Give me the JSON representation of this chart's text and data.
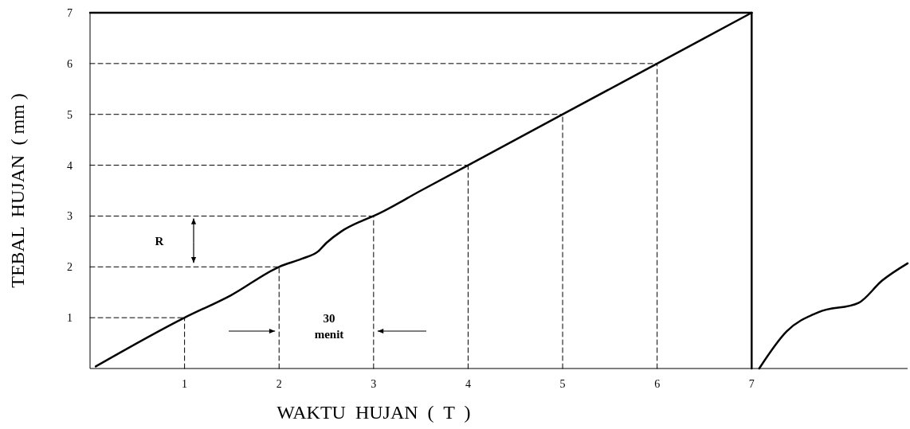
{
  "chart_data": {
    "type": "line",
    "xlabel": "WAKTU  HUJAN  (  T  )",
    "ylabel": "TEBAL  HUJAN  ( mm )",
    "xlim": [
      0,
      8.65
    ],
    "ylim": [
      0,
      7
    ],
    "xticks": [
      1,
      2,
      3,
      4,
      5,
      6,
      7
    ],
    "yticks": [
      1,
      2,
      3,
      4,
      5,
      6,
      7
    ],
    "grid": false,
    "marker": "none",
    "line_style": "solid",
    "series": [
      {
        "color": "#000000",
        "x": [
          0.06,
          1,
          1.49,
          2,
          2.24,
          2.41,
          2.5,
          2.66,
          2.87,
          3,
          3.5,
          4,
          5,
          6,
          7
        ],
        "values": [
          0.04,
          1,
          1.44,
          2,
          2.16,
          2.3,
          2.47,
          2.7,
          2.9,
          3,
          3.5,
          4,
          5,
          6,
          7
        ]
      },
      {
        "color": "#000000",
        "x": [
          7.08,
          7.37,
          7.71,
          8.13,
          8.38,
          8.65
        ],
        "values": [
          0,
          0.73,
          1.11,
          1.29,
          1.73,
          2.07
        ]
      },
      {
        "color": "#000000",
        "x": [
          0,
          7
        ],
        "values": [
          7,
          7
        ]
      },
      {
        "color": "#000000",
        "x": [
          7,
          7
        ],
        "values": [
          0,
          7
        ]
      },
      {
        "color": "#000000",
        "line_style": "dashed",
        "x": [
          0,
          1
        ],
        "values": [
          1,
          1
        ]
      },
      {
        "color": "#000000",
        "line_style": "dashed",
        "x": [
          1,
          1
        ],
        "values": [
          0,
          1
        ]
      },
      {
        "color": "#000000",
        "line_style": "dashed",
        "x": [
          0,
          2
        ],
        "values": [
          2,
          2
        ]
      },
      {
        "color": "#000000",
        "line_style": "dashed",
        "x": [
          2,
          2
        ],
        "values": [
          0,
          2
        ]
      },
      {
        "color": "#000000",
        "line_style": "dashed",
        "x": [
          0,
          3
        ],
        "values": [
          3,
          3
        ]
      },
      {
        "color": "#000000",
        "line_style": "dashed",
        "x": [
          3,
          3
        ],
        "values": [
          0,
          3
        ]
      },
      {
        "color": "#000000",
        "line_style": "dashed",
        "x": [
          0,
          4
        ],
        "values": [
          4,
          4
        ]
      },
      {
        "color": "#000000",
        "line_style": "dashed",
        "x": [
          4,
          4
        ],
        "values": [
          0,
          4
        ]
      },
      {
        "color": "#000000",
        "line_style": "dashed",
        "x": [
          0,
          5
        ],
        "values": [
          5,
          5
        ]
      },
      {
        "color": "#000000",
        "line_style": "dashed",
        "x": [
          5,
          5
        ],
        "values": [
          0,
          5
        ]
      },
      {
        "color": "#000000",
        "line_style": "dashed",
        "x": [
          0,
          6
        ],
        "values": [
          6,
          6
        ]
      },
      {
        "color": "#000000",
        "line_style": "dashed",
        "x": [
          6,
          6
        ],
        "values": [
          0,
          6
        ]
      }
    ],
    "annotations": [
      "R",
      "30 menit"
    ]
  }
}
